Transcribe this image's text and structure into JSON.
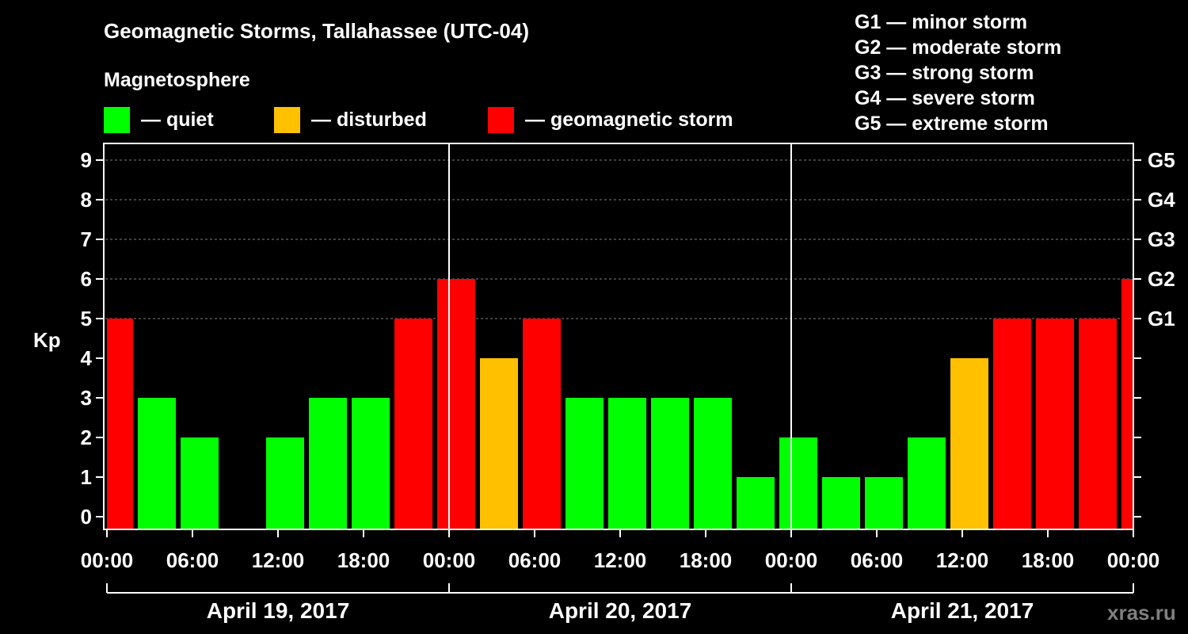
{
  "title": "Geomagnetic Storms, Tallahassee (UTC-04)",
  "magnetosphere_label": "Magnetosphere",
  "legend": [
    {
      "label": "— quiet",
      "color": "#00ff00"
    },
    {
      "label": "— disturbed",
      "color": "#ffc000"
    },
    {
      "label": "— geomagnetic storm",
      "color": "#ff0000"
    }
  ],
  "g_scale": [
    "G1 — minor storm",
    "G2 — moderate storm",
    "G3 — strong storm",
    "G4 — severe storm",
    "G5 — extreme storm"
  ],
  "watermark": "xras.ru",
  "chart_data": {
    "type": "bar",
    "ylabel": "Kp",
    "ylim": [
      0,
      9
    ],
    "yticks": [
      "0",
      "1",
      "2",
      "3",
      "4",
      "5",
      "6",
      "7",
      "8",
      "9"
    ],
    "right_ticks": [
      {
        "value": 5,
        "label": "G1"
      },
      {
        "value": 6,
        "label": "G2"
      },
      {
        "value": 7,
        "label": "G3"
      },
      {
        "value": 8,
        "label": "G4"
      },
      {
        "value": 9,
        "label": "G5"
      }
    ],
    "xticks": [
      "00:00",
      "06:00",
      "12:00",
      "18:00",
      "00:00",
      "06:00",
      "12:00",
      "18:00",
      "00:00",
      "06:00",
      "12:00",
      "18:00",
      "00:00"
    ],
    "dates": [
      "April 19, 2017",
      "April 20, 2017",
      "April 21, 2017"
    ],
    "x_range_hours": [
      0,
      72
    ],
    "bars": [
      {
        "start": 0,
        "end": 2,
        "kp": 5
      },
      {
        "start": 2,
        "end": 5,
        "kp": 3
      },
      {
        "start": 5,
        "end": 8,
        "kp": 2
      },
      {
        "start": 8,
        "end": 11,
        "kp": 0
      },
      {
        "start": 11,
        "end": 14,
        "kp": 2
      },
      {
        "start": 14,
        "end": 17,
        "kp": 3
      },
      {
        "start": 17,
        "end": 20,
        "kp": 3
      },
      {
        "start": 20,
        "end": 23,
        "kp": 5
      },
      {
        "start": 23,
        "end": 26,
        "kp": 6
      },
      {
        "start": 26,
        "end": 29,
        "kp": 4
      },
      {
        "start": 29,
        "end": 32,
        "kp": 5
      },
      {
        "start": 32,
        "end": 35,
        "kp": 3
      },
      {
        "start": 35,
        "end": 38,
        "kp": 3
      },
      {
        "start": 38,
        "end": 41,
        "kp": 3
      },
      {
        "start": 41,
        "end": 44,
        "kp": 3
      },
      {
        "start": 44,
        "end": 47,
        "kp": 1
      },
      {
        "start": 47,
        "end": 50,
        "kp": 2
      },
      {
        "start": 50,
        "end": 53,
        "kp": 1
      },
      {
        "start": 53,
        "end": 56,
        "kp": 1
      },
      {
        "start": 56,
        "end": 59,
        "kp": 2
      },
      {
        "start": 59,
        "end": 62,
        "kp": 4
      },
      {
        "start": 62,
        "end": 65,
        "kp": 5
      },
      {
        "start": 65,
        "end": 68,
        "kp": 5
      },
      {
        "start": 68,
        "end": 71,
        "kp": 5
      },
      {
        "start": 71,
        "end": 72,
        "kp": 6
      }
    ]
  }
}
